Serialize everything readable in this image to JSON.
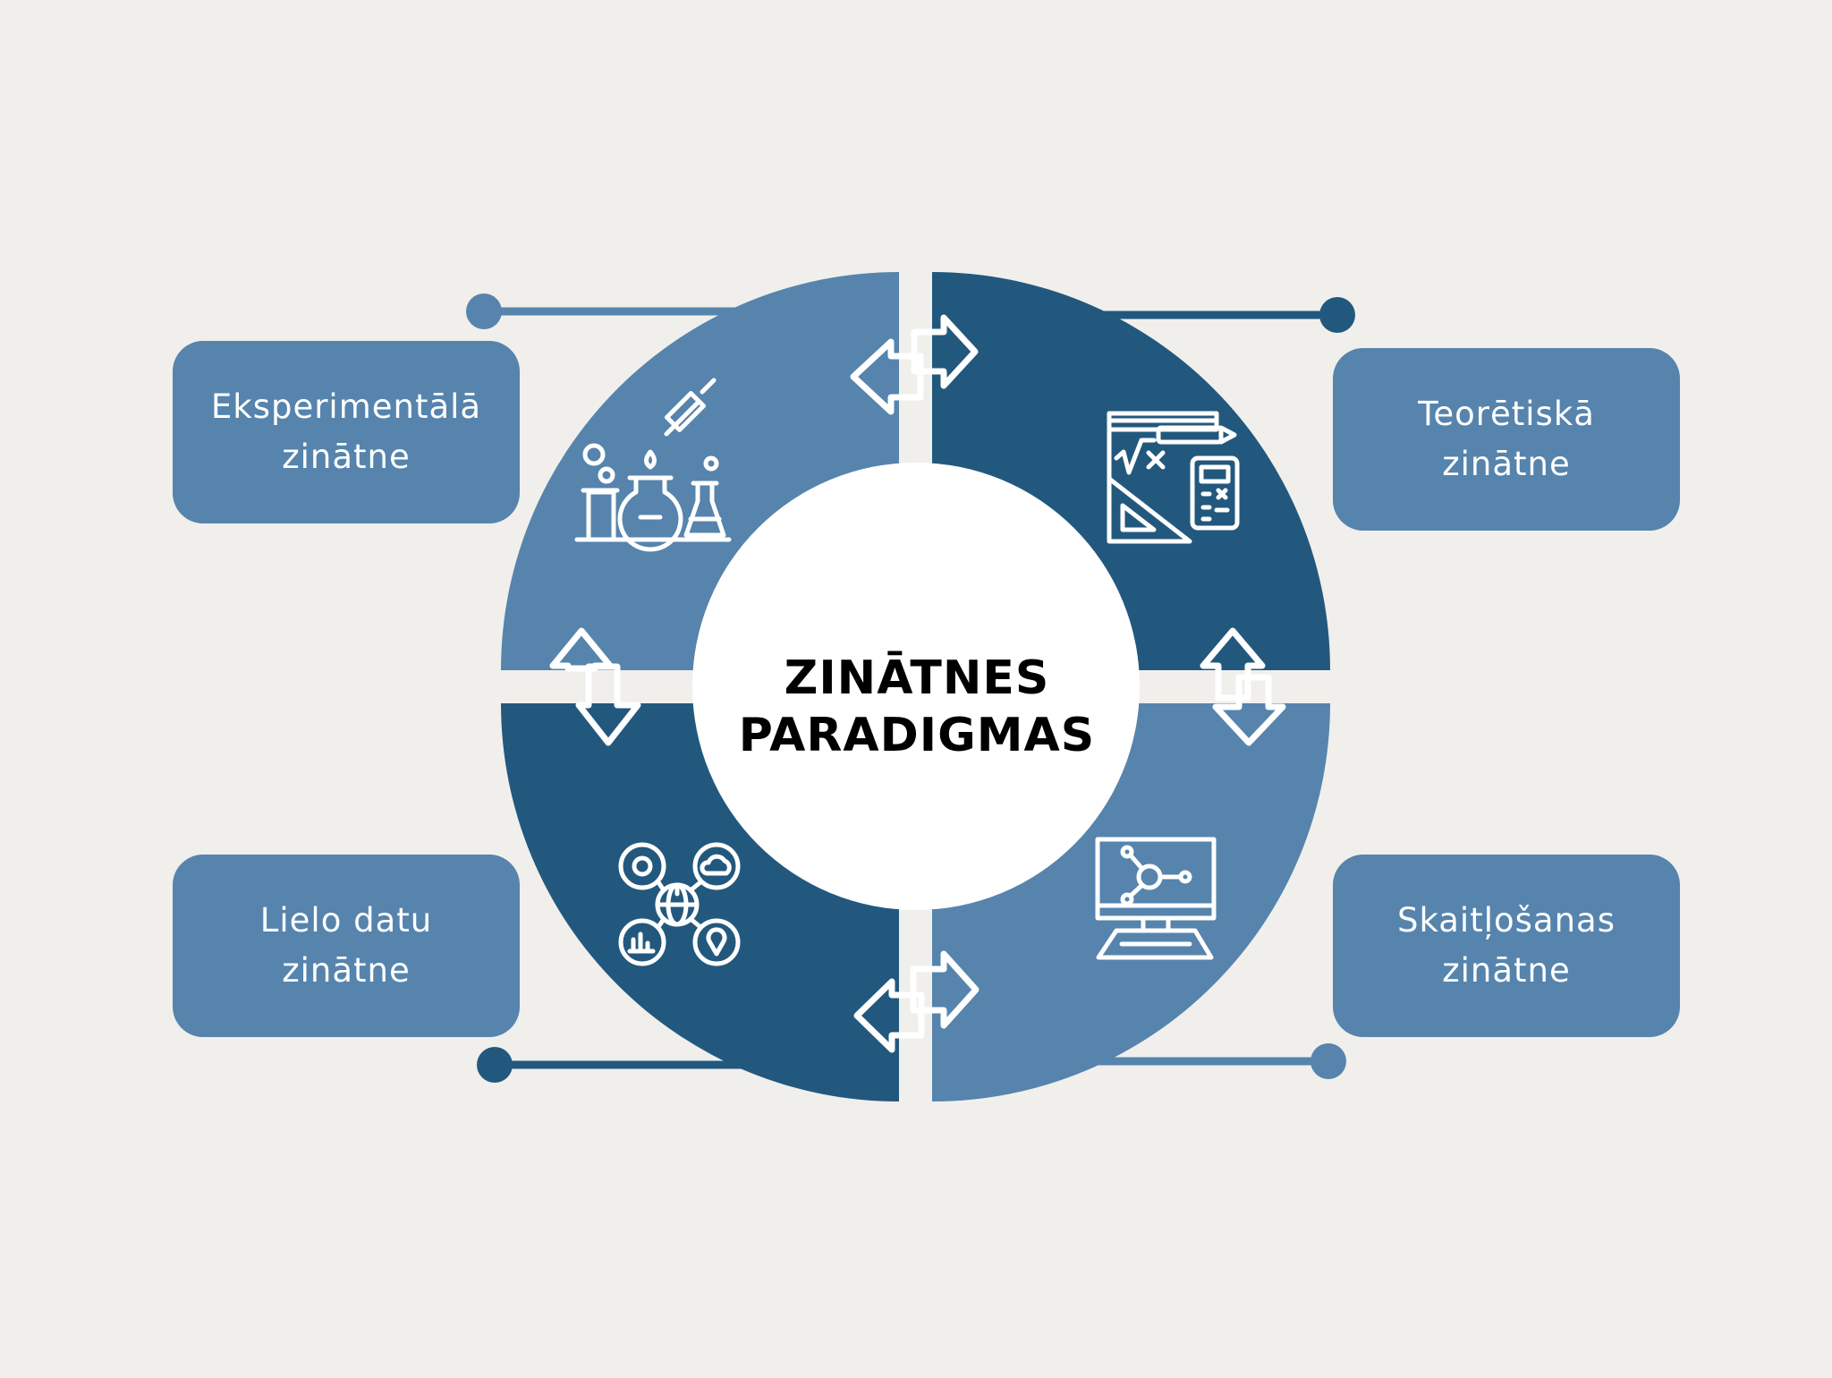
{
  "center": {
    "line1": "ZINĀTNES",
    "line2": "PARADIGMAS"
  },
  "paradigms": [
    {
      "id": "experimental",
      "line1": "Eksperimentālā",
      "line2": "zinātne",
      "icon": "laboratory-flasks-icon"
    },
    {
      "id": "theoretical",
      "line1": "Teorētiskā",
      "line2": "zinātne",
      "icon": "math-tools-icon"
    },
    {
      "id": "bigdata",
      "line1": "Lielo datu",
      "line2": "zinātne",
      "icon": "data-network-icon"
    },
    {
      "id": "computational",
      "line1": "Skaitļošanas",
      "line2": "zinātne",
      "icon": "computer-network-icon"
    }
  ],
  "colors": {
    "background": "#f0efec",
    "light_blue": "#5684ad",
    "dark_blue": "#23587e",
    "center": "#ffffff",
    "icon": "#ffffff"
  }
}
